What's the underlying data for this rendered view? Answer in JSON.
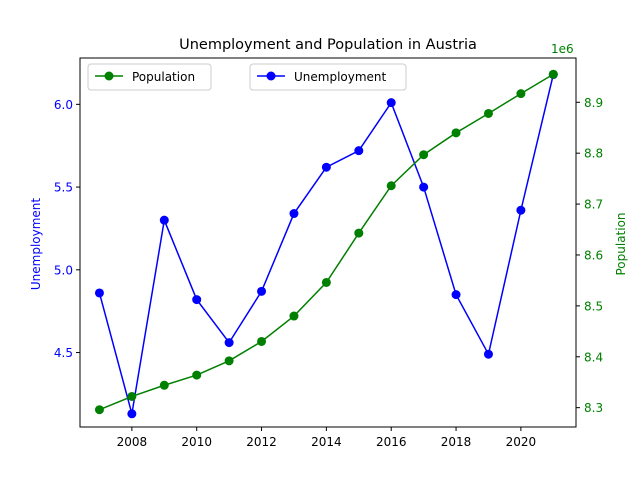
{
  "chart_data": {
    "type": "line",
    "title": "Unemployment and Population in Austria",
    "xlabel": "",
    "x": [
      2007,
      2008,
      2009,
      2010,
      2011,
      2012,
      2013,
      2014,
      2015,
      2016,
      2017,
      2018,
      2019,
      2020,
      2021
    ],
    "xlim": [
      2006.4,
      2021.7
    ],
    "x_ticks": [
      2008,
      2010,
      2012,
      2014,
      2016,
      2018,
      2020
    ],
    "x_tick_labels": [
      "2008",
      "2010",
      "2012",
      "2014",
      "2016",
      "2018",
      "2020"
    ],
    "grid": false,
    "left_axis": {
      "label": "Unemployment",
      "color": "#0000ff",
      "ylim": [
        4.05,
        6.28
      ],
      "ticks": [
        4.5,
        5.0,
        5.5,
        6.0
      ],
      "tick_labels": [
        "4.5",
        "5.0",
        "5.5",
        "6.0"
      ]
    },
    "right_axis": {
      "label": "Population",
      "color": "#008000",
      "offset_text": "1e6",
      "ylim": [
        8.262,
        8.987
      ],
      "ticks": [
        8.3,
        8.4,
        8.5,
        8.6,
        8.7,
        8.8,
        8.9
      ],
      "tick_labels": [
        "8.3",
        "8.4",
        "8.5",
        "8.6",
        "8.7",
        "8.8",
        "8.9"
      ]
    },
    "series": [
      {
        "name": "Unemployment",
        "axis": "left",
        "color": "#0000ff",
        "marker": "circle",
        "values": [
          4.86,
          4.13,
          5.3,
          4.82,
          4.56,
          4.87,
          5.34,
          5.62,
          5.72,
          6.01,
          5.5,
          4.85,
          4.49,
          5.36,
          6.18
        ]
      },
      {
        "name": "Population",
        "axis": "right",
        "color": "#008000",
        "marker": "circle",
        "values": [
          8.296,
          8.322,
          8.344,
          8.364,
          8.392,
          8.43,
          8.48,
          8.546,
          8.643,
          8.736,
          8.797,
          8.84,
          8.878,
          8.917,
          8.955
        ]
      }
    ],
    "legends": [
      {
        "position": "upper-left",
        "entries": [
          "Population"
        ]
      },
      {
        "position": "upper-center",
        "entries": [
          "Unemployment"
        ]
      }
    ]
  }
}
